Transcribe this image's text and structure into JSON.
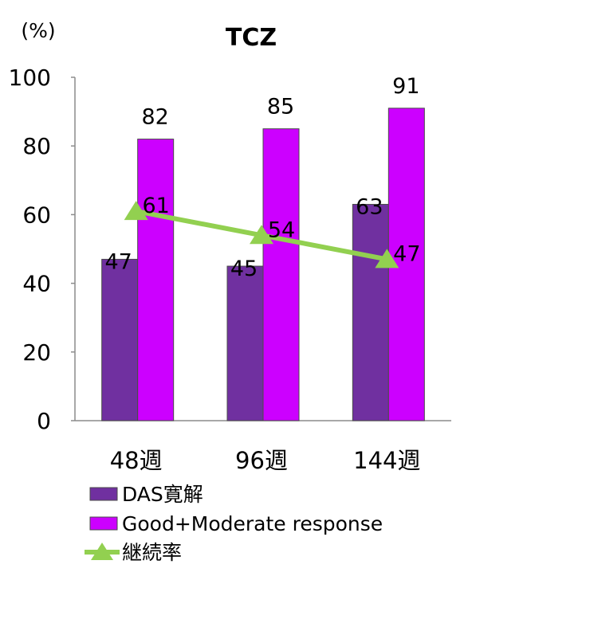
{
  "chart_data": {
    "type": "bar",
    "title": "TCZ",
    "unit_label": "(%)",
    "categories": [
      "48週",
      "96週",
      "144週"
    ],
    "series": [
      {
        "name": "DAS寛解",
        "type": "bar",
        "color": "#7030a0",
        "values": [
          47,
          45,
          63
        ]
      },
      {
        "name": "Good+Moderate response",
        "type": "bar",
        "color": "#cc00ff",
        "values": [
          82,
          85,
          91
        ]
      },
      {
        "name": "継続率",
        "type": "line",
        "marker": "triangle",
        "color": "#92d050",
        "values": [
          61,
          54,
          47
        ]
      }
    ],
    "ylim": [
      0,
      100
    ],
    "yticks": [
      0,
      20,
      40,
      60,
      80,
      100
    ],
    "grid": false,
    "legend_position": "bottom-left"
  }
}
